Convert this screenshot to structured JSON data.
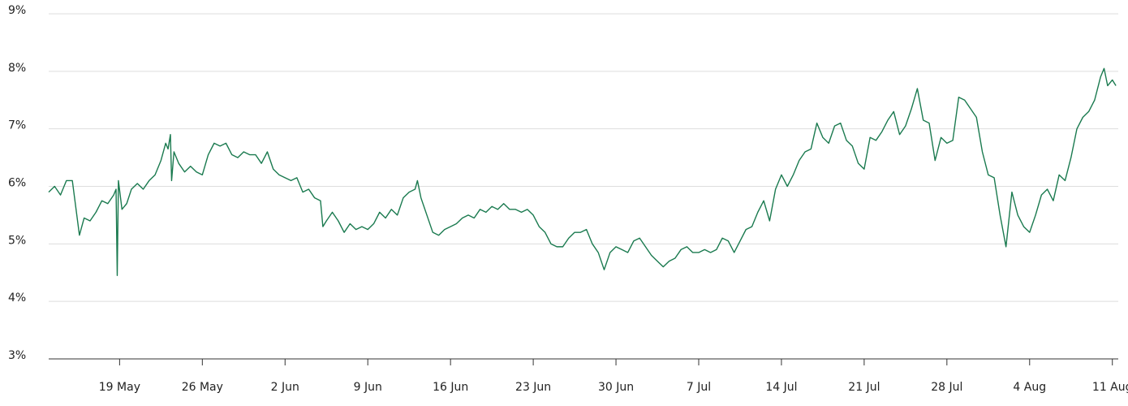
{
  "chart_data": {
    "type": "line",
    "x": [
      0,
      0.5,
      1,
      1.5,
      2,
      2.6,
      3,
      3.5,
      4,
      4.5,
      5,
      5.5,
      5.7,
      5.8,
      5.9,
      6.2,
      6.6,
      7,
      7.5,
      8,
      8.5,
      9,
      9.5,
      9.9,
      10.1,
      10.3,
      10.4,
      10.6,
      11,
      11.5,
      12,
      12.5,
      13,
      13.5,
      14,
      14.5,
      15,
      15.5,
      16,
      16.5,
      17,
      17.5,
      18,
      18.5,
      19,
      19.5,
      20,
      20.5,
      21,
      21.5,
      22,
      22.5,
      23,
      23.2,
      23.5,
      24,
      24.5,
      25,
      25.5,
      26,
      26.5,
      27,
      27.5,
      28,
      28.5,
      29,
      29.5,
      30,
      30.5,
      31,
      31.2,
      31.5,
      32,
      32.5,
      33,
      33.5,
      34,
      34.5,
      35,
      35.5,
      36,
      36.5,
      37,
      37.5,
      38,
      38.5,
      39,
      39.5,
      40,
      40.5,
      41,
      41.5,
      42,
      42.5,
      43,
      43.5,
      44,
      44.5,
      45,
      45.5,
      46,
      46.5,
      47,
      47.5,
      48,
      48.5,
      49,
      49.5,
      50,
      50.5,
      51,
      51.5,
      52,
      52.5,
      53,
      53.5,
      54,
      54.5,
      55,
      55.5,
      56,
      56.5,
      57,
      57.5,
      58,
      58.5,
      59,
      59.5,
      60,
      60.5,
      61,
      61.5,
      62,
      62.5,
      63,
      63.5,
      64,
      64.5,
      65,
      65.5,
      66,
      66.5,
      67,
      67.5,
      68,
      68.5,
      69,
      69.5,
      70,
      70.5,
      71,
      71.5,
      72,
      72.5,
      73,
      73.5,
      74,
      74.5,
      75,
      75.5,
      76,
      76.5,
      77,
      77.5,
      78,
      78.5,
      79,
      79.5,
      80,
      80.5,
      81,
      81.5,
      82,
      82.5,
      83,
      83.5,
      84,
      84.5,
      85,
      85.5,
      86,
      86.5,
      87,
      87.5,
      88,
      88.5,
      89,
      89.3,
      89.6,
      90,
      90.3
    ],
    "series": [
      {
        "color": "#1a7a4f",
        "values": [
          5.9,
          6.0,
          5.85,
          6.1,
          6.1,
          5.15,
          5.45,
          5.4,
          5.55,
          5.75,
          5.7,
          5.85,
          5.95,
          4.45,
          6.1,
          5.6,
          5.7,
          5.95,
          6.05,
          5.95,
          6.1,
          6.2,
          6.45,
          6.75,
          6.65,
          6.9,
          6.1,
          6.6,
          6.4,
          6.25,
          6.35,
          6.25,
          6.2,
          6.55,
          6.75,
          6.7,
          6.75,
          6.55,
          6.5,
          6.6,
          6.55,
          6.55,
          6.4,
          6.6,
          6.3,
          6.2,
          6.15,
          6.1,
          6.15,
          5.9,
          5.95,
          5.8,
          5.75,
          5.3,
          5.4,
          5.55,
          5.4,
          5.2,
          5.35,
          5.25,
          5.3,
          5.25,
          5.35,
          5.55,
          5.45,
          5.6,
          5.5,
          5.8,
          5.9,
          5.95,
          6.1,
          5.8,
          5.5,
          5.2,
          5.15,
          5.25,
          5.3,
          5.35,
          5.45,
          5.5,
          5.45,
          5.6,
          5.55,
          5.65,
          5.6,
          5.7,
          5.6,
          5.6,
          5.55,
          5.6,
          5.5,
          5.3,
          5.2,
          5.0,
          4.95,
          4.95,
          5.1,
          5.2,
          5.2,
          5.25,
          5.0,
          4.85,
          4.55,
          4.85,
          4.95,
          4.9,
          4.85,
          5.05,
          5.1,
          4.95,
          4.8,
          4.7,
          4.6,
          4.7,
          4.75,
          4.9,
          4.95,
          4.85,
          4.85,
          4.9,
          4.85,
          4.9,
          5.1,
          5.05,
          4.85,
          5.05,
          5.25,
          5.3,
          5.55,
          5.75,
          5.4,
          5.95,
          6.2,
          6.0,
          6.2,
          6.45,
          6.6,
          6.65,
          7.1,
          6.85,
          6.75,
          7.05,
          7.1,
          6.8,
          6.7,
          6.4,
          6.3,
          6.85,
          6.8,
          6.95,
          7.15,
          7.3,
          6.9,
          7.05,
          7.35,
          7.7,
          7.15,
          7.1,
          6.45,
          6.85,
          6.75,
          6.8,
          7.55,
          7.5,
          7.35,
          7.2,
          6.6,
          6.2,
          6.15,
          5.5,
          4.95,
          5.9,
          5.5,
          5.3,
          5.2,
          5.5,
          5.85,
          5.95,
          5.75,
          6.2,
          6.1,
          6.5,
          7.0,
          7.2,
          7.3,
          7.5,
          7.9,
          8.05,
          7.75,
          7.85,
          7.75
        ]
      }
    ],
    "xlim": [
      0,
      90.5
    ],
    "xticks": [
      {
        "value": 6,
        "label": "19 May"
      },
      {
        "value": 13,
        "label": "26 May"
      },
      {
        "value": 20,
        "label": "2 Jun"
      },
      {
        "value": 27,
        "label": "9 Jun"
      },
      {
        "value": 34,
        "label": "16 Jun"
      },
      {
        "value": 41,
        "label": "23 Jun"
      },
      {
        "value": 48,
        "label": "30 Jun"
      },
      {
        "value": 55,
        "label": "7 Jul"
      },
      {
        "value": 62,
        "label": "14 Jul"
      },
      {
        "value": 69,
        "label": "21 Jul"
      },
      {
        "value": 76,
        "label": "28 Jul"
      },
      {
        "value": 83,
        "label": "4 Aug"
      },
      {
        "value": 90,
        "label": "11 Aug"
      }
    ],
    "ylim": [
      3,
      9
    ],
    "yticks": [
      {
        "value": 3,
        "label": "3%"
      },
      {
        "value": 4,
        "label": "4%"
      },
      {
        "value": 5,
        "label": "5%"
      },
      {
        "value": 6,
        "label": "6%"
      },
      {
        "value": 7,
        "label": "7%"
      },
      {
        "value": 8,
        "label": "8%"
      },
      {
        "value": 9,
        "label": "9%"
      }
    ],
    "grid": true
  }
}
